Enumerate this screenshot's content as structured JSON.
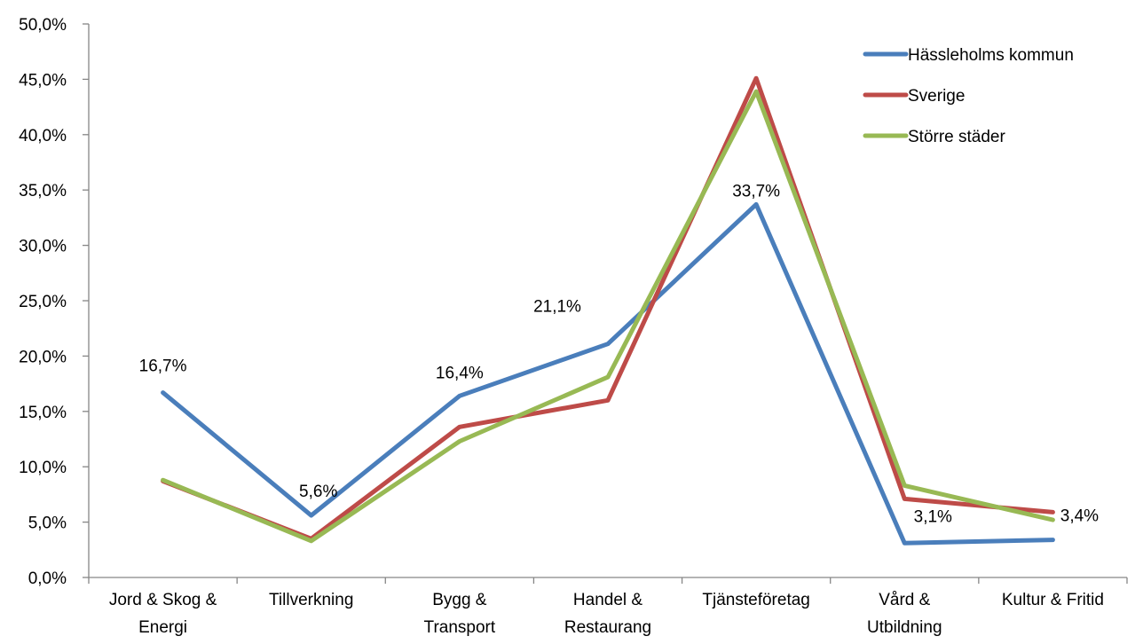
{
  "chart_data": {
    "type": "line",
    "title": "",
    "xlabel": "",
    "ylabel": "",
    "ylim": [
      0,
      50
    ],
    "y_ticks": [
      "0,0%",
      "5,0%",
      "10,0%",
      "15,0%",
      "20,0%",
      "25,0%",
      "30,0%",
      "35,0%",
      "40,0%",
      "45,0%",
      "50,0%"
    ],
    "grid": false,
    "legend_position": "top-right",
    "categories": [
      [
        "Jord & Skog &",
        "Energi"
      ],
      [
        "Tillverkning"
      ],
      [
        "Bygg &",
        "Transport"
      ],
      [
        "Handel &",
        "Restaurang"
      ],
      [
        "Tjänsteföretag"
      ],
      [
        "Vård &",
        "Utbildning"
      ],
      [
        "Kultur & Fritid"
      ]
    ],
    "series": [
      {
        "name": "Hässleholms kommun",
        "color": "#4a7ebb",
        "values": [
          16.7,
          5.6,
          16.4,
          21.1,
          33.7,
          3.1,
          3.4
        ],
        "labels": [
          "16,7%",
          "5,6%",
          "16,4%",
          "21,1%",
          "33,7%",
          "3,1%",
          "3,4%"
        ]
      },
      {
        "name": "Sverige",
        "color": "#be4b48",
        "values": [
          8.7,
          3.5,
          13.6,
          16.0,
          45.1,
          7.1,
          5.9
        ]
      },
      {
        "name": "Större städer",
        "color": "#98b954",
        "values": [
          8.8,
          3.3,
          12.3,
          18.1,
          43.9,
          8.3,
          5.2
        ]
      }
    ]
  }
}
